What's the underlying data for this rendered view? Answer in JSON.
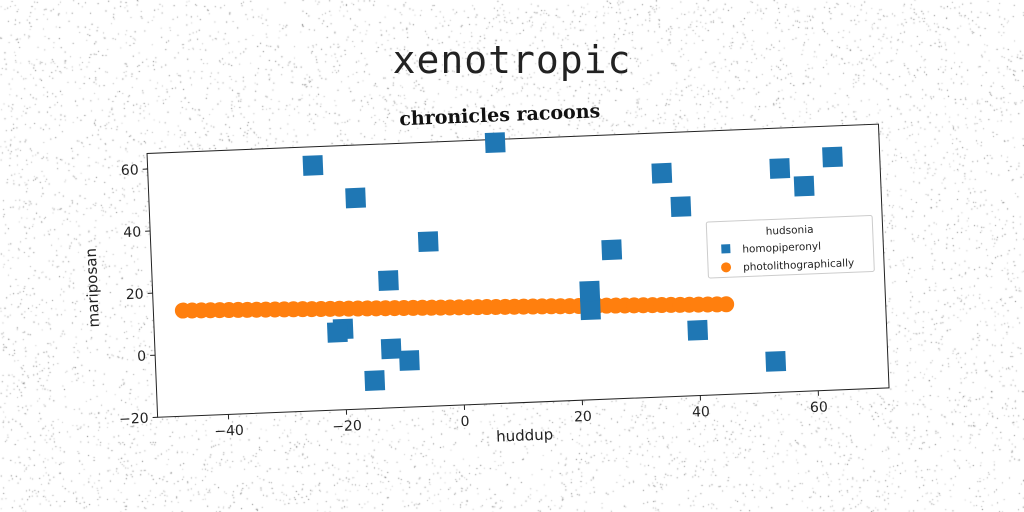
{
  "headline": "xenotropic",
  "chart_data": {
    "type": "scatter",
    "title": "chronicles racoons",
    "xlabel": "huddup",
    "ylabel": "mariposan",
    "xlim": [
      -52,
      72
    ],
    "ylim": [
      -20,
      65
    ],
    "xticks": [
      -40,
      -20,
      0,
      20,
      40,
      60
    ],
    "yticks": [
      -20,
      0,
      20,
      40,
      60
    ],
    "grid": false,
    "legend": {
      "title": "hudsonia",
      "placement": "right"
    },
    "series": [
      {
        "name": "homopiperonyl",
        "marker": "square",
        "color": "#1f77b4",
        "points": [
          {
            "x": -24,
            "y": 59
          },
          {
            "x": -17,
            "y": 48
          },
          {
            "x": -5,
            "y": 33
          },
          {
            "x": -12,
            "y": 21
          },
          {
            "x": -20,
            "y": 6
          },
          {
            "x": -21,
            "y": 5
          },
          {
            "x": -12,
            "y": -1
          },
          {
            "x": -9,
            "y": -5
          },
          {
            "x": -15,
            "y": -11
          },
          {
            "x": 7,
            "y": 64
          },
          {
            "x": 22,
            "y": 9
          },
          {
            "x": 22,
            "y": 15
          },
          {
            "x": 26,
            "y": 28
          },
          {
            "x": 35,
            "y": 52
          },
          {
            "x": 38,
            "y": 41
          },
          {
            "x": 40,
            "y": 1
          },
          {
            "x": 55,
            "y": 52
          },
          {
            "x": 59,
            "y": 46
          },
          {
            "x": 64,
            "y": 55
          },
          {
            "x": 53,
            "y": -10
          }
        ]
      },
      {
        "name": "photolithographically",
        "marker": "circle",
        "color": "#ff7f0e",
        "line": {
          "x_start": -47,
          "y_start": 14,
          "x_end": 45,
          "y_end": 9,
          "count": 60
        }
      }
    ]
  }
}
